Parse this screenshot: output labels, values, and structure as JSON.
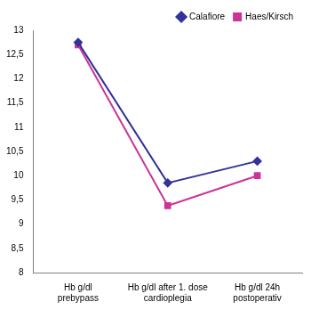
{
  "chart_data": {
    "type": "line",
    "categories": [
      [
        "Hb g/dl",
        "prebypass"
      ],
      [
        "Hb g/dl after 1. dose",
        "cardioplegia"
      ],
      [
        "Hb g/dl 24h",
        "postoperativ"
      ]
    ],
    "series": [
      {
        "name": "Calafiore",
        "color": "#333399",
        "marker": "diamond",
        "values": [
          12.75,
          9.85,
          10.3
        ]
      },
      {
        "name": "Haes/Kirsch",
        "color": "#cc3399",
        "marker": "square",
        "values": [
          12.7,
          9.38,
          10.0
        ]
      }
    ],
    "ylim": [
      8,
      13
    ],
    "yticks": [
      8,
      {
        "value": 8.5,
        "label": "8,5"
      },
      9,
      {
        "value": 9.5,
        "label": "9,5"
      },
      10,
      {
        "value": 10.5,
        "label": "10,5"
      },
      11,
      {
        "value": 11.5,
        "label": "11,5"
      },
      12,
      {
        "value": 12.5,
        "label": "12,5"
      },
      13
    ],
    "grid": false,
    "legend": "upper right"
  }
}
